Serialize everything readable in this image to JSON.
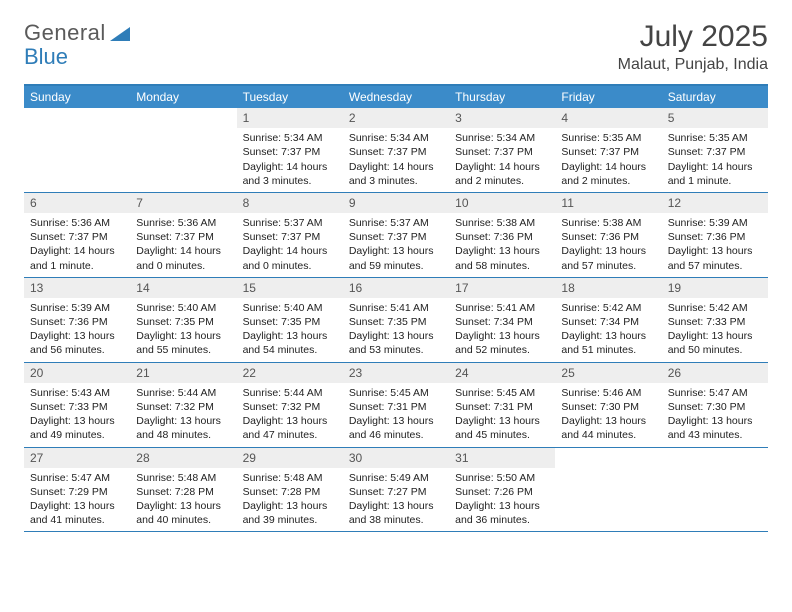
{
  "logo": {
    "text1": "General",
    "text2": "Blue"
  },
  "title": "July 2025",
  "location": "Malaut, Punjab, India",
  "colors": {
    "header_bg": "#3b8bc9",
    "border": "#2f7db8",
    "daynum_bg": "#eeeeee",
    "text": "#222222",
    "title": "#444444"
  },
  "day_names": [
    "Sunday",
    "Monday",
    "Tuesday",
    "Wednesday",
    "Thursday",
    "Friday",
    "Saturday"
  ],
  "leading_blanks": 2,
  "trailing_blanks": 2,
  "days": [
    {
      "n": "1",
      "sunrise": "5:34 AM",
      "sunset": "7:37 PM",
      "daylight": "14 hours and 3 minutes."
    },
    {
      "n": "2",
      "sunrise": "5:34 AM",
      "sunset": "7:37 PM",
      "daylight": "14 hours and 3 minutes."
    },
    {
      "n": "3",
      "sunrise": "5:34 AM",
      "sunset": "7:37 PM",
      "daylight": "14 hours and 2 minutes."
    },
    {
      "n": "4",
      "sunrise": "5:35 AM",
      "sunset": "7:37 PM",
      "daylight": "14 hours and 2 minutes."
    },
    {
      "n": "5",
      "sunrise": "5:35 AM",
      "sunset": "7:37 PM",
      "daylight": "14 hours and 1 minute."
    },
    {
      "n": "6",
      "sunrise": "5:36 AM",
      "sunset": "7:37 PM",
      "daylight": "14 hours and 1 minute."
    },
    {
      "n": "7",
      "sunrise": "5:36 AM",
      "sunset": "7:37 PM",
      "daylight": "14 hours and 0 minutes."
    },
    {
      "n": "8",
      "sunrise": "5:37 AM",
      "sunset": "7:37 PM",
      "daylight": "14 hours and 0 minutes."
    },
    {
      "n": "9",
      "sunrise": "5:37 AM",
      "sunset": "7:37 PM",
      "daylight": "13 hours and 59 minutes."
    },
    {
      "n": "10",
      "sunrise": "5:38 AM",
      "sunset": "7:36 PM",
      "daylight": "13 hours and 58 minutes."
    },
    {
      "n": "11",
      "sunrise": "5:38 AM",
      "sunset": "7:36 PM",
      "daylight": "13 hours and 57 minutes."
    },
    {
      "n": "12",
      "sunrise": "5:39 AM",
      "sunset": "7:36 PM",
      "daylight": "13 hours and 57 minutes."
    },
    {
      "n": "13",
      "sunrise": "5:39 AM",
      "sunset": "7:36 PM",
      "daylight": "13 hours and 56 minutes."
    },
    {
      "n": "14",
      "sunrise": "5:40 AM",
      "sunset": "7:35 PM",
      "daylight": "13 hours and 55 minutes."
    },
    {
      "n": "15",
      "sunrise": "5:40 AM",
      "sunset": "7:35 PM",
      "daylight": "13 hours and 54 minutes."
    },
    {
      "n": "16",
      "sunrise": "5:41 AM",
      "sunset": "7:35 PM",
      "daylight": "13 hours and 53 minutes."
    },
    {
      "n": "17",
      "sunrise": "5:41 AM",
      "sunset": "7:34 PM",
      "daylight": "13 hours and 52 minutes."
    },
    {
      "n": "18",
      "sunrise": "5:42 AM",
      "sunset": "7:34 PM",
      "daylight": "13 hours and 51 minutes."
    },
    {
      "n": "19",
      "sunrise": "5:42 AM",
      "sunset": "7:33 PM",
      "daylight": "13 hours and 50 minutes."
    },
    {
      "n": "20",
      "sunrise": "5:43 AM",
      "sunset": "7:33 PM",
      "daylight": "13 hours and 49 minutes."
    },
    {
      "n": "21",
      "sunrise": "5:44 AM",
      "sunset": "7:32 PM",
      "daylight": "13 hours and 48 minutes."
    },
    {
      "n": "22",
      "sunrise": "5:44 AM",
      "sunset": "7:32 PM",
      "daylight": "13 hours and 47 minutes."
    },
    {
      "n": "23",
      "sunrise": "5:45 AM",
      "sunset": "7:31 PM",
      "daylight": "13 hours and 46 minutes."
    },
    {
      "n": "24",
      "sunrise": "5:45 AM",
      "sunset": "7:31 PM",
      "daylight": "13 hours and 45 minutes."
    },
    {
      "n": "25",
      "sunrise": "5:46 AM",
      "sunset": "7:30 PM",
      "daylight": "13 hours and 44 minutes."
    },
    {
      "n": "26",
      "sunrise": "5:47 AM",
      "sunset": "7:30 PM",
      "daylight": "13 hours and 43 minutes."
    },
    {
      "n": "27",
      "sunrise": "5:47 AM",
      "sunset": "7:29 PM",
      "daylight": "13 hours and 41 minutes."
    },
    {
      "n": "28",
      "sunrise": "5:48 AM",
      "sunset": "7:28 PM",
      "daylight": "13 hours and 40 minutes."
    },
    {
      "n": "29",
      "sunrise": "5:48 AM",
      "sunset": "7:28 PM",
      "daylight": "13 hours and 39 minutes."
    },
    {
      "n": "30",
      "sunrise": "5:49 AM",
      "sunset": "7:27 PM",
      "daylight": "13 hours and 38 minutes."
    },
    {
      "n": "31",
      "sunrise": "5:50 AM",
      "sunset": "7:26 PM",
      "daylight": "13 hours and 36 minutes."
    }
  ],
  "labels": {
    "sunrise": "Sunrise: ",
    "sunset": "Sunset: ",
    "daylight": "Daylight: "
  }
}
